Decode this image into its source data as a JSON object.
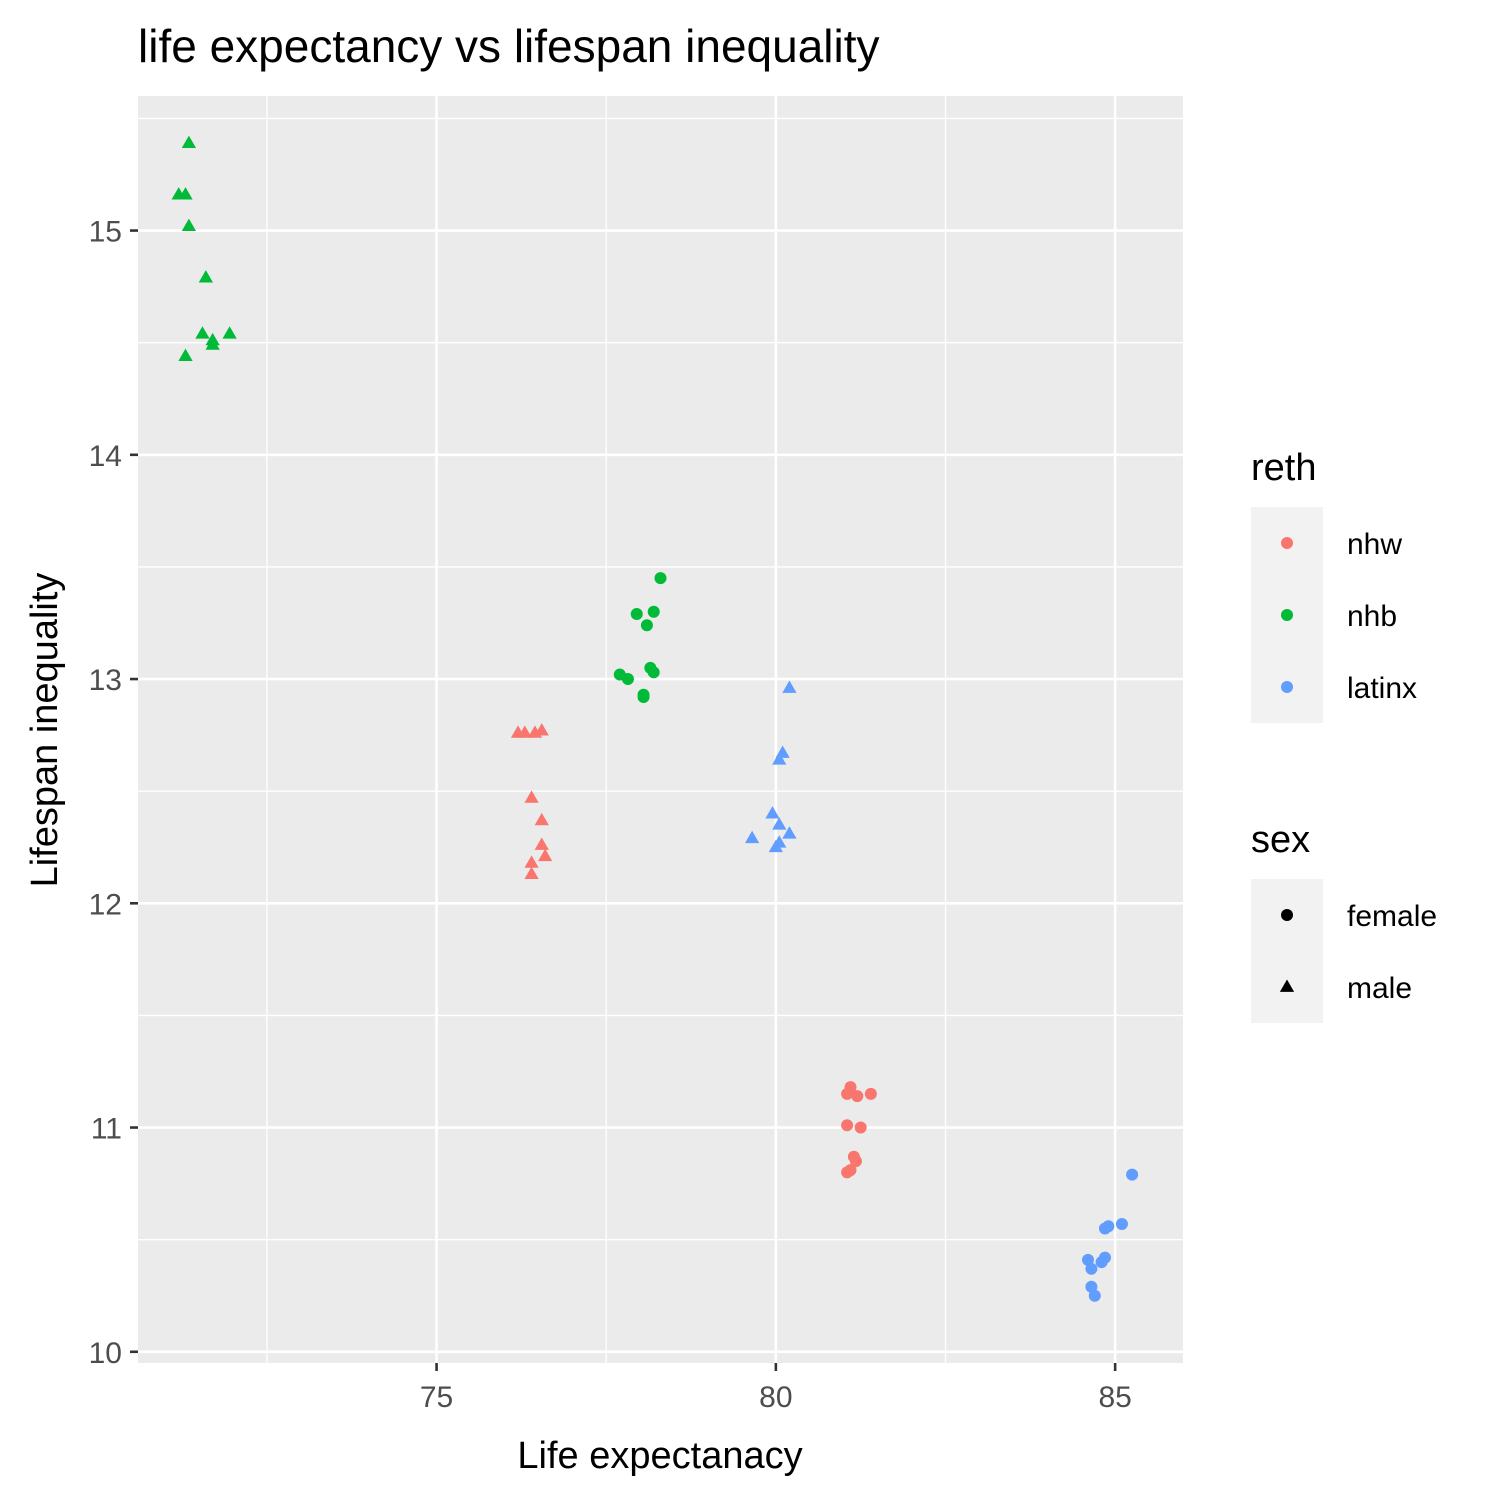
{
  "chart_data": {
    "type": "scatter",
    "title": "life expectancy vs lifespan inequality",
    "xlabel": "Life expectanacy",
    "ylabel": "Lifespan inequality",
    "xlim": [
      70.6,
      86.0
    ],
    "ylim": [
      9.95,
      15.6
    ],
    "x_ticks": [
      75,
      80,
      85
    ],
    "y_ticks": [
      10,
      11,
      12,
      13,
      14,
      15
    ],
    "x_tick_labels": [
      "75",
      "80",
      "85"
    ],
    "y_tick_labels": [
      "10",
      "11",
      "12",
      "13",
      "14",
      "15"
    ],
    "grid": true,
    "legend_position": "right",
    "legends": [
      {
        "title": "reth",
        "aesthetic": "color",
        "entries": [
          {
            "label": "nhw",
            "color": "#F8766D"
          },
          {
            "label": "nhb",
            "color": "#00BA38"
          },
          {
            "label": "latinx",
            "color": "#619CFF"
          }
        ]
      },
      {
        "title": "sex",
        "aesthetic": "shape",
        "entries": [
          {
            "label": "female",
            "shape": "circle"
          },
          {
            "label": "male",
            "shape": "triangle"
          }
        ]
      }
    ],
    "series": [
      {
        "name": "nhw female",
        "reth": "nhw",
        "sex": "female",
        "color": "#F8766D",
        "shape": "circle",
        "points": [
          [
            81.1,
            11.18
          ],
          [
            81.05,
            11.15
          ],
          [
            81.2,
            11.14
          ],
          [
            81.4,
            11.15
          ],
          [
            81.05,
            11.01
          ],
          [
            81.25,
            11.0
          ],
          [
            81.15,
            10.87
          ],
          [
            81.18,
            10.85
          ],
          [
            81.1,
            10.81
          ],
          [
            81.05,
            10.8
          ]
        ]
      },
      {
        "name": "nhb female",
        "reth": "nhb",
        "sex": "female",
        "color": "#00BA38",
        "shape": "circle",
        "points": [
          [
            78.3,
            13.45
          ],
          [
            78.2,
            13.3
          ],
          [
            77.95,
            13.29
          ],
          [
            78.1,
            13.24
          ],
          [
            78.15,
            13.05
          ],
          [
            78.2,
            13.03
          ],
          [
            77.7,
            13.02
          ],
          [
            77.82,
            13.0
          ],
          [
            78.05,
            12.93
          ],
          [
            78.05,
            12.92
          ]
        ]
      },
      {
        "name": "latinx female",
        "reth": "latinx",
        "sex": "female",
        "color": "#619CFF",
        "shape": "circle",
        "points": [
          [
            85.25,
            10.79
          ],
          [
            85.1,
            10.57
          ],
          [
            84.9,
            10.56
          ],
          [
            84.85,
            10.55
          ],
          [
            84.85,
            10.42
          ],
          [
            84.8,
            10.4
          ],
          [
            84.6,
            10.41
          ],
          [
            84.65,
            10.37
          ],
          [
            84.65,
            10.29
          ],
          [
            84.7,
            10.25
          ]
        ]
      },
      {
        "name": "nhw male",
        "reth": "nhw",
        "sex": "male",
        "color": "#F8766D",
        "shape": "triangle",
        "points": [
          [
            76.2,
            12.76
          ],
          [
            76.3,
            12.76
          ],
          [
            76.45,
            12.76
          ],
          [
            76.55,
            12.77
          ],
          [
            76.4,
            12.47
          ],
          [
            76.55,
            12.37
          ],
          [
            76.55,
            12.26
          ],
          [
            76.6,
            12.21
          ],
          [
            76.4,
            12.18
          ],
          [
            76.4,
            12.13
          ]
        ]
      },
      {
        "name": "nhb male",
        "reth": "nhb",
        "sex": "male",
        "color": "#00BA38",
        "shape": "triangle",
        "points": [
          [
            71.35,
            15.39
          ],
          [
            71.2,
            15.16
          ],
          [
            71.3,
            15.16
          ],
          [
            71.35,
            15.02
          ],
          [
            71.6,
            14.79
          ],
          [
            71.55,
            14.54
          ],
          [
            71.95,
            14.54
          ],
          [
            71.7,
            14.51
          ],
          [
            71.7,
            14.49
          ],
          [
            71.3,
            14.44
          ]
        ]
      },
      {
        "name": "latinx male",
        "reth": "latinx",
        "sex": "male",
        "color": "#619CFF",
        "shape": "triangle",
        "points": [
          [
            80.2,
            12.96
          ],
          [
            80.1,
            12.67
          ],
          [
            80.05,
            12.64
          ],
          [
            79.95,
            12.4
          ],
          [
            80.05,
            12.35
          ],
          [
            80.2,
            12.31
          ],
          [
            79.65,
            12.29
          ],
          [
            80.05,
            12.27
          ],
          [
            80.0,
            12.25
          ]
        ]
      }
    ]
  }
}
